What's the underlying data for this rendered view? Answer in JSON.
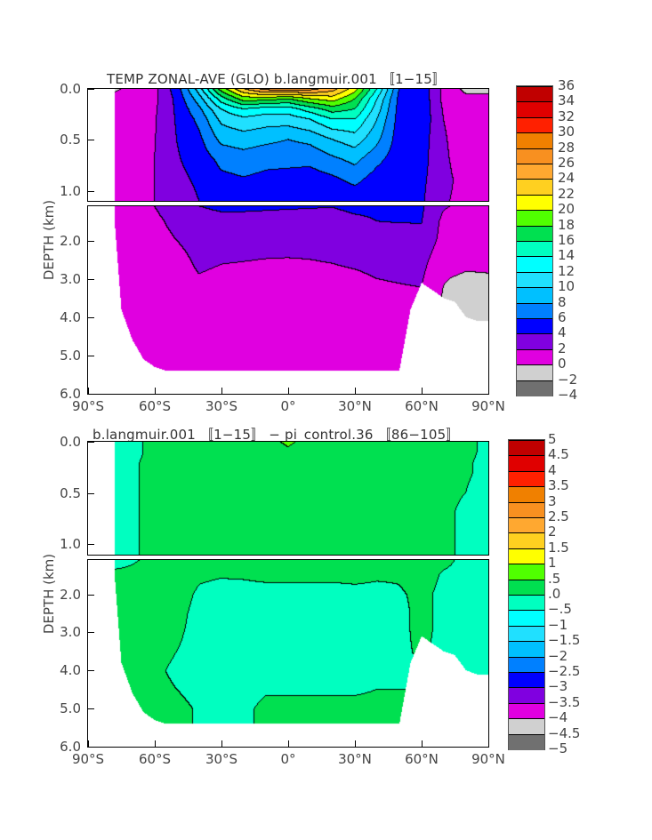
{
  "chart_data": [
    {
      "type": "heatmap",
      "title": "TEMP  ZONAL-AVE (GLO) b.langmuir.001  〚1−15〛",
      "ylabel": "DEPTH (km)",
      "xlabel": "",
      "xlim": [
        -90,
        90
      ],
      "ylim": [
        6.0,
        0.0
      ],
      "depth_break": 1.1,
      "x_ticks": [
        {
          "v": -90,
          "label": "90°S"
        },
        {
          "v": -60,
          "label": "60°S"
        },
        {
          "v": -30,
          "label": "30°S"
        },
        {
          "v": 0,
          "label": "0°"
        },
        {
          "v": 30,
          "label": "30°N"
        },
        {
          "v": 60,
          "label": "60°N"
        },
        {
          "v": 90,
          "label": "90°N"
        }
      ],
      "y_ticks": [
        {
          "v": 0.0,
          "label": "0.0"
        },
        {
          "v": 0.5,
          "label": "0.5"
        },
        {
          "v": 1.0,
          "label": "1.0"
        },
        {
          "v": 2.0,
          "label": "2.0"
        },
        {
          "v": 3.0,
          "label": "3.0"
        },
        {
          "v": 4.0,
          "label": "4.0"
        },
        {
          "v": 5.0,
          "label": "5.0"
        },
        {
          "v": 6.0,
          "label": "6.0"
        }
      ],
      "levels": {
        "min": -4,
        "step": 2,
        "labels": [
          "36",
          "34",
          "32",
          "30",
          "28",
          "26",
          "24",
          "22",
          "20",
          "18",
          "16",
          "14",
          "12",
          "10",
          "8",
          "6",
          "4",
          "2",
          "0",
          "−2",
          "−4"
        ]
      },
      "colors": [
        "#c00000",
        "#e00000",
        "#ff2000",
        "#f08000",
        "#f89020",
        "#ffa830",
        "#ffd020",
        "#ffff00",
        "#50ff00",
        "#00e050",
        "#00ffc0",
        "#00ffff",
        "#20e0ff",
        "#00c0ff",
        "#0080ff",
        "#0000ff",
        "#8000e0",
        "#e000e0",
        "#d0d0d0",
        "#707070"
      ],
      "lats": [
        -90,
        -80,
        -70,
        -60,
        -50,
        -40,
        -30,
        -20,
        -10,
        0,
        10,
        20,
        30,
        40,
        50,
        60,
        70,
        80,
        90
      ],
      "depths": [
        0,
        0.1,
        0.2,
        0.3,
        0.5,
        0.7,
        0.9,
        1.1,
        1.5,
        2,
        2.5,
        3,
        4,
        5,
        6
      ],
      "values": [
        [
          -1,
          -0.5,
          0.5,
          1.5,
          5,
          11,
          19,
          24,
          27,
          27.5,
          27,
          25,
          21,
          14,
          6,
          5.5,
          1.5,
          -0.5,
          -0.5
        ],
        [
          0.5,
          0.5,
          0.8,
          1.5,
          4.5,
          9,
          15,
          19,
          19,
          18,
          20,
          21,
          18,
          12,
          5.5,
          5.5,
          1.5,
          0.5,
          0.5
        ],
        [
          0.5,
          0.5,
          1,
          1.7,
          4.3,
          7.5,
          12,
          14,
          13,
          13,
          15,
          17,
          16,
          11,
          5.3,
          5.5,
          1.8,
          1,
          1
        ],
        [
          0.5,
          0.5,
          1,
          1.8,
          4.2,
          6.5,
          10.5,
          11.5,
          11,
          11,
          12,
          14,
          14,
          10,
          5.2,
          5.5,
          2,
          1,
          1
        ],
        [
          0.5,
          0.5,
          1,
          1.9,
          4,
          5.5,
          8.5,
          9,
          8.5,
          8,
          8.5,
          10,
          11,
          8.5,
          5,
          5,
          2.2,
          1,
          1
        ],
        [
          0.5,
          0.5,
          1,
          2,
          3.8,
          4.8,
          6.5,
          7,
          6.5,
          6.5,
          6.5,
          7.5,
          8.5,
          6.5,
          4.8,
          4.8,
          2.3,
          1.2,
          1.2
        ],
        [
          0.5,
          0.5,
          1,
          2,
          3.5,
          4.3,
          5.5,
          5.8,
          5.5,
          5.3,
          5,
          5.5,
          6.5,
          5,
          4.5,
          4.5,
          2.4,
          1.5,
          1.8
        ],
        [
          0.5,
          0.5,
          1,
          2,
          3,
          4,
          4.5,
          4.5,
          4.4,
          4.3,
          4.2,
          4.1,
          4.6,
          4.5,
          4.3,
          4.3,
          2.2,
          1.5,
          2
        ],
        [
          0.5,
          0.5,
          0.9,
          1.6,
          2.5,
          3,
          3.2,
          3.2,
          3.1,
          3,
          3,
          3,
          3.5,
          4,
          4.1,
          4.1,
          1.5,
          1.2,
          1.2
        ],
        [
          0.5,
          0.5,
          0.8,
          1.3,
          2,
          2.6,
          2.6,
          2.5,
          2.5,
          2.5,
          2.5,
          2.6,
          3.2,
          3,
          3,
          3.3,
          1.4,
          0.8,
          0.6
        ],
        [
          0.5,
          0.5,
          0.7,
          1,
          1.5,
          2.3,
          2.1,
          2.05,
          1.98,
          1.95,
          2,
          2.1,
          2.3,
          2.5,
          2.5,
          2.6,
          0.8,
          0.5,
          0.5
        ],
        [
          0.4,
          0.4,
          0.6,
          0.8,
          1.3,
          1.9,
          1.7,
          1.6,
          1.55,
          1.5,
          1.55,
          1.6,
          1.7,
          2,
          2.1,
          2.2,
          0.1,
          -0.3,
          -0.2
        ],
        [
          0.3,
          0.3,
          0.5,
          0.7,
          1,
          1.2,
          1.1,
          1.1,
          1,
          1,
          1,
          1,
          1.1,
          1.2,
          1.3,
          1.3,
          -0.5,
          -0.5,
          -0.5
        ],
        [
          -0.2,
          -0.2,
          0.2,
          0.6,
          0.8,
          0.9,
          0.9,
          0.8,
          0.8,
          0.8,
          0.8,
          0.8,
          0.9,
          1,
          1,
          1,
          -0.5,
          -0.5,
          -0.5
        ],
        [
          -0.2,
          -0.2,
          0.2,
          0.6,
          0.8,
          0.9,
          0.9,
          0.8,
          0.8,
          0.8,
          0.8,
          0.8,
          0.9,
          1,
          1,
          1,
          -0.5,
          -0.5,
          -0.5
        ]
      ]
    },
    {
      "type": "heatmap",
      "title": "b.langmuir.001  〚1−15〛  −  pi_control.36  〚86−105〛",
      "ylabel": "DEPTH (km)",
      "xlabel": "",
      "xlim": [
        -90,
        90
      ],
      "ylim": [
        6.0,
        0.0
      ],
      "depth_break": 1.1,
      "x_ticks": [
        {
          "v": -90,
          "label": "90°S"
        },
        {
          "v": -60,
          "label": "60°S"
        },
        {
          "v": -30,
          "label": "30°S"
        },
        {
          "v": 0,
          "label": "0°"
        },
        {
          "v": 30,
          "label": "30°N"
        },
        {
          "v": 60,
          "label": "60°N"
        },
        {
          "v": 90,
          "label": "90°N"
        }
      ],
      "y_ticks": [
        {
          "v": 0.0,
          "label": "0.0"
        },
        {
          "v": 0.5,
          "label": "0.5"
        },
        {
          "v": 1.0,
          "label": "1.0"
        },
        {
          "v": 2.0,
          "label": "2.0"
        },
        {
          "v": 3.0,
          "label": "3.0"
        },
        {
          "v": 4.0,
          "label": "4.0"
        },
        {
          "v": 5.0,
          "label": "5.0"
        },
        {
          "v": 6.0,
          "label": "6.0"
        }
      ],
      "levels": {
        "min": -5,
        "step": 0.5,
        "labels": [
          "5",
          "4.5",
          "4",
          "3.5",
          "3",
          "2.5",
          "2",
          "1.5",
          "1",
          ".5",
          ".0",
          "−.5",
          "−1",
          "−1.5",
          "−2",
          "−2.5",
          "−3",
          "−3.5",
          "−4",
          "−4.5",
          "−5"
        ]
      },
      "colors": [
        "#c00000",
        "#e00000",
        "#ff2000",
        "#f08000",
        "#f89020",
        "#ffa830",
        "#ffd020",
        "#ffff00",
        "#50ff00",
        "#00e050",
        "#00ffc0",
        "#00ffff",
        "#20e0ff",
        "#00c0ff",
        "#0080ff",
        "#0000ff",
        "#8000e0",
        "#e000e0",
        "#d0d0d0",
        "#707070"
      ],
      "lats": [
        -90,
        -80,
        -70,
        -60,
        -50,
        -40,
        -30,
        -20,
        -10,
        0,
        10,
        20,
        30,
        40,
        50,
        60,
        70,
        80,
        90
      ],
      "depths": [
        0,
        0.1,
        0.2,
        0.3,
        0.5,
        0.7,
        0.9,
        1.1,
        1.5,
        2,
        2.5,
        3,
        4,
        5,
        6
      ],
      "values": [
        [
          -0.2,
          -0.2,
          -0.1,
          0.1,
          0.2,
          0.2,
          0.2,
          0.25,
          0.3,
          0.6,
          0.3,
          0.2,
          0.2,
          0.2,
          0.3,
          0.2,
          0.1,
          0.1,
          -0.1
        ],
        [
          -0.2,
          -0.2,
          -0.1,
          0.1,
          0.2,
          0.2,
          0.2,
          0.2,
          0.25,
          0.4,
          0.25,
          0.2,
          0.2,
          0.2,
          0.2,
          0.2,
          0.1,
          0.1,
          -0.1
        ],
        [
          -0.2,
          -0.2,
          -0.05,
          0.1,
          0.2,
          0.2,
          0.2,
          0.2,
          0.2,
          0.2,
          0.2,
          0.2,
          0.2,
          0.2,
          0.2,
          0.2,
          0.1,
          0.05,
          -0.1
        ],
        [
          -0.2,
          -0.2,
          -0.05,
          0.1,
          0.2,
          0.2,
          0.2,
          0.2,
          0.2,
          0.2,
          0.2,
          0.2,
          0.2,
          0.2,
          0.2,
          0.2,
          0.1,
          0.05,
          -0.1
        ],
        [
          -0.2,
          -0.2,
          -0.05,
          0.1,
          0.2,
          0.2,
          0.2,
          0.2,
          0.2,
          0.2,
          0.2,
          0.2,
          0.2,
          0.2,
          0.2,
          0.2,
          0.1,
          0,
          -0.2
        ],
        [
          -0.2,
          -0.2,
          -0.05,
          0.1,
          0.2,
          0.2,
          0.2,
          0.2,
          0.2,
          0.2,
          0.2,
          0.2,
          0.2,
          0.2,
          0.2,
          0.2,
          0.1,
          -0.1,
          -0.2
        ],
        [
          -0.2,
          -0.2,
          -0.05,
          0.1,
          0.2,
          0.2,
          0.2,
          0.2,
          0.2,
          0.2,
          0.2,
          0.2,
          0.2,
          0.2,
          0.2,
          0.2,
          0.1,
          -0.1,
          -0.2
        ],
        [
          -0.2,
          -0.2,
          -0.05,
          0.1,
          0.2,
          0.2,
          0.2,
          0.2,
          0.2,
          0.2,
          0.2,
          0.2,
          0.2,
          0.2,
          0.2,
          0.2,
          0.1,
          -0.1,
          -0.2
        ],
        [
          0.1,
          0.1,
          0.1,
          0.2,
          0.2,
          0.05,
          0.02,
          0.05,
          0.1,
          0.1,
          0.1,
          0.1,
          0.1,
          0.05,
          0.05,
          0.2,
          -0.05,
          -0.1,
          -0.1
        ],
        [
          0.1,
          0.1,
          0.1,
          0.2,
          0.15,
          -0.05,
          -0.1,
          -0.15,
          -0.15,
          -0.15,
          -0.15,
          -0.15,
          -0.1,
          -0.1,
          -0.05,
          0.1,
          -0.1,
          -0.1,
          -0.1
        ],
        [
          0.1,
          0.1,
          0.1,
          0.2,
          0.1,
          -0.1,
          -0.15,
          -0.2,
          -0.2,
          -0.2,
          -0.2,
          -0.2,
          -0.15,
          -0.1,
          -0.1,
          0.1,
          -0.1,
          -0.1,
          -0.1
        ],
        [
          0.1,
          0.1,
          0.1,
          0.15,
          0.05,
          -0.1,
          -0.15,
          -0.2,
          -0.2,
          -0.2,
          -0.2,
          -0.2,
          -0.15,
          -0.1,
          -0.1,
          0.1,
          -0.1,
          -0.1,
          -0.1
        ],
        [
          0.1,
          0.1,
          0.1,
          0.05,
          -0.05,
          -0.1,
          -0.1,
          -0.1,
          -0.1,
          -0.1,
          -0.1,
          -0.1,
          -0.1,
          -0.05,
          -0.05,
          0,
          -0.1,
          -0.1,
          -0.1
        ],
        [
          0.1,
          0.1,
          0.1,
          0.1,
          0.05,
          -0.02,
          -0.05,
          -0.05,
          0.05,
          0.05,
          0.05,
          0.05,
          0.05,
          0.05,
          0.05,
          0,
          -0.1,
          -0.1,
          -0.1
        ],
        [
          0.1,
          0.1,
          0.1,
          0.1,
          0.05,
          -0.02,
          -0.05,
          -0.05,
          0.05,
          0.05,
          0.05,
          0.05,
          0.05,
          0.05,
          0.05,
          0,
          -0.1,
          -0.1,
          -0.1
        ]
      ]
    }
  ],
  "bathymetry": {
    "ocean_south_limit": -78,
    "lats": [
      -80,
      -75,
      -70,
      -65,
      -60,
      -55,
      -50,
      50,
      55,
      60,
      65,
      70,
      75,
      80,
      85,
      90
    ],
    "max_depth": [
      0,
      3.8,
      4.6,
      5.1,
      5.3,
      5.4,
      5.4,
      5.4,
      3.8,
      3.1,
      3.3,
      3.5,
      3.6,
      4.0,
      4.1,
      4.1
    ]
  }
}
